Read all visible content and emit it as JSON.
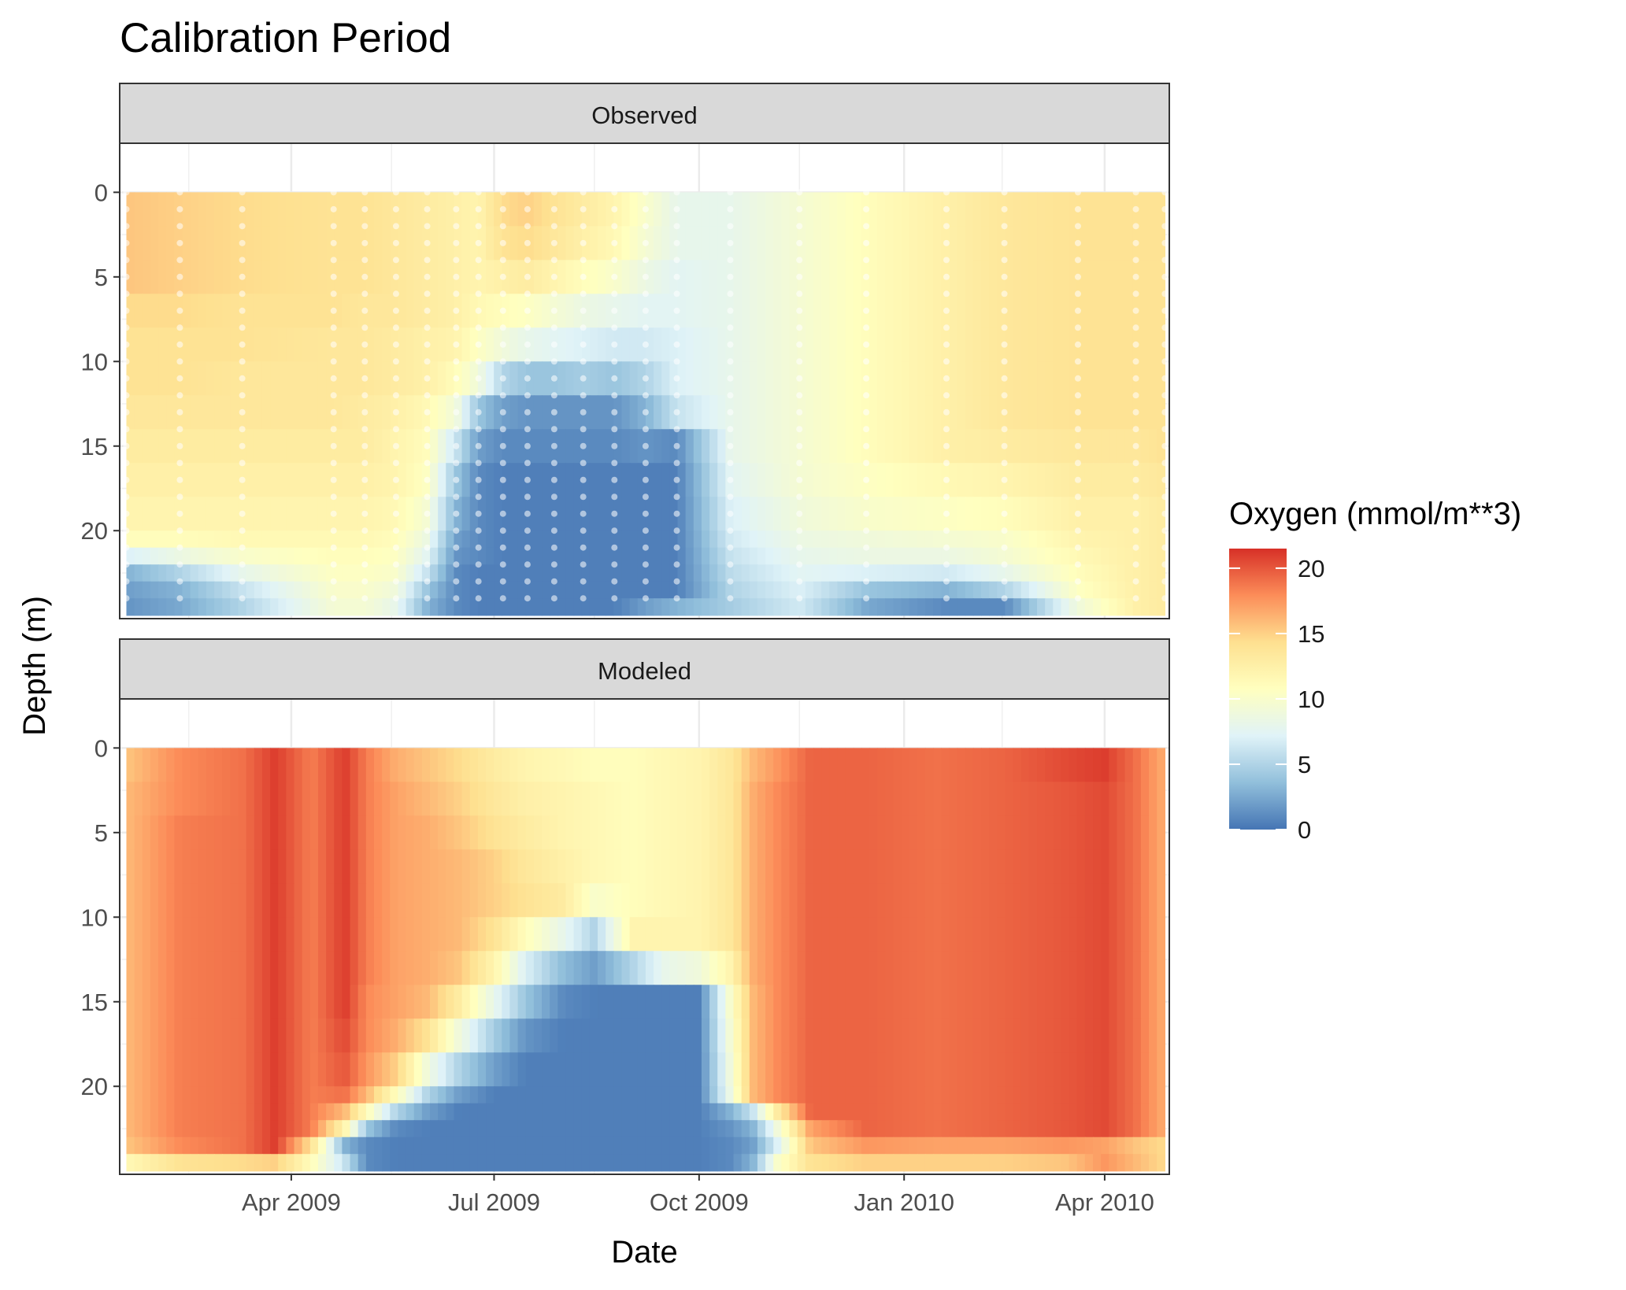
{
  "title": "Calibration Period",
  "chart_data": {
    "type": "heatmap",
    "title": "Calibration Period",
    "xlabel": "Date",
    "ylabel": "Depth (m)",
    "x_ticks": [
      "Apr 2009",
      "Jul 2009",
      "Oct 2009",
      "Jan 2010",
      "Apr 2010"
    ],
    "x_tick_dates": [
      "2009-04-01",
      "2009-07-01",
      "2009-10-01",
      "2010-01-01",
      "2010-04-01"
    ],
    "xlim": [
      "2009-01-14",
      "2010-04-30"
    ],
    "x_grid_dates": [
      "2009-02-14",
      "2009-05-16",
      "2009-08-15",
      "2009-11-15",
      "2010-02-14"
    ],
    "y_ticks": [
      0,
      5,
      10,
      15,
      20
    ],
    "y_tick_labels": [
      "0",
      "5",
      "10",
      "15",
      "20"
    ],
    "ylim": [
      25.2,
      -2.9
    ],
    "y_reversed": true,
    "grid": true,
    "legend": {
      "title": "Oxygen (mmol/m**3)",
      "position": "right",
      "ticks": [
        0,
        5,
        10,
        15,
        20
      ],
      "tick_labels": [
        "0",
        "5",
        "10",
        "15",
        "20"
      ],
      "range": [
        0,
        21.5
      ],
      "colors": [
        "#4575b4",
        "#91bfdb",
        "#e0f3f8",
        "#ffffbf",
        "#fee090",
        "#fc8d59",
        "#d73027"
      ]
    },
    "panels": [
      {
        "name": "Observed",
        "date_columns": [
          "2009-01-17",
          "2009-02-10",
          "2009-03-10",
          "2009-04-20",
          "2009-05-04",
          "2009-05-18",
          "2009-06-01",
          "2009-06-14",
          "2009-06-24",
          "2009-07-05",
          "2009-07-16",
          "2009-07-28",
          "2009-08-10",
          "2009-08-24",
          "2009-09-07",
          "2009-09-21",
          "2009-10-15",
          "2009-11-15",
          "2009-12-15",
          "2010-01-20",
          "2010-02-15",
          "2010-03-20",
          "2010-04-15",
          "2010-04-28"
        ],
        "depth_rows": [
          0,
          2,
          4,
          6,
          8,
          10,
          12,
          14,
          16,
          18,
          20,
          21,
          22,
          23,
          24,
          25
        ],
        "values": [
          [
            15.5,
            15.0,
            14.5,
            14.0,
            14.0,
            13.5,
            13.0,
            12.5,
            12.0,
            14.5,
            15.0,
            14.0,
            13.0,
            12.0,
            10.0,
            8.0,
            8.0,
            9.5,
            11.0,
            12.5,
            13.5,
            14.0,
            14.0,
            14.0
          ],
          [
            15.5,
            15.0,
            14.5,
            14.0,
            14.0,
            13.5,
            13.0,
            12.5,
            12.0,
            14.0,
            14.5,
            13.5,
            12.5,
            11.5,
            9.5,
            8.0,
            8.0,
            9.5,
            11.0,
            12.5,
            13.5,
            14.0,
            14.0,
            14.0
          ],
          [
            15.5,
            15.0,
            14.5,
            14.0,
            14.0,
            13.5,
            13.0,
            12.5,
            12.0,
            12.5,
            13.0,
            12.0,
            11.0,
            10.0,
            8.5,
            7.5,
            8.0,
            9.5,
            11.0,
            12.5,
            13.5,
            14.0,
            14.0,
            14.0
          ],
          [
            14.5,
            14.5,
            14.0,
            14.0,
            13.5,
            13.5,
            13.0,
            12.5,
            11.5,
            11.0,
            10.5,
            9.5,
            8.5,
            8.0,
            7.5,
            7.5,
            8.0,
            9.5,
            11.0,
            12.5,
            13.5,
            14.0,
            14.0,
            14.0
          ],
          [
            14.0,
            14.0,
            14.0,
            13.5,
            13.5,
            13.0,
            12.5,
            12.0,
            10.5,
            9.0,
            8.0,
            7.5,
            7.0,
            6.5,
            6.5,
            7.0,
            8.0,
            9.5,
            11.0,
            12.5,
            13.5,
            14.0,
            14.0,
            14.0
          ],
          [
            14.0,
            14.0,
            13.5,
            13.5,
            13.5,
            13.0,
            12.5,
            11.0,
            9.0,
            5.0,
            4.0,
            4.0,
            4.5,
            4.0,
            5.0,
            7.0,
            8.0,
            9.5,
            11.0,
            12.5,
            13.5,
            14.0,
            14.0,
            14.0
          ],
          [
            13.5,
            13.5,
            13.5,
            13.5,
            13.0,
            12.5,
            11.5,
            9.0,
            4.0,
            2.0,
            1.5,
            1.5,
            1.5,
            1.5,
            3.0,
            6.0,
            8.0,
            9.5,
            11.0,
            12.5,
            13.5,
            14.0,
            14.0,
            14.0
          ],
          [
            13.0,
            13.0,
            13.0,
            13.0,
            13.0,
            12.0,
            11.0,
            6.0,
            2.0,
            1.0,
            1.0,
            1.0,
            1.0,
            1.0,
            1.5,
            1.0,
            8.0,
            9.5,
            11.0,
            12.5,
            13.0,
            13.5,
            13.5,
            14.0
          ],
          [
            12.5,
            12.5,
            12.5,
            12.5,
            12.5,
            12.0,
            10.5,
            4.0,
            1.0,
            0.5,
            0.5,
            0.5,
            0.5,
            0.5,
            0.5,
            0.5,
            7.5,
            9.5,
            10.5,
            11.5,
            12.0,
            13.0,
            13.0,
            13.5
          ],
          [
            12.0,
            12.0,
            12.0,
            12.0,
            12.0,
            11.5,
            9.5,
            3.0,
            1.0,
            0.5,
            0.5,
            0.5,
            0.5,
            0.5,
            0.5,
            0.5,
            7.0,
            9.0,
            10.0,
            10.5,
            11.0,
            12.5,
            12.5,
            13.0
          ],
          [
            11.0,
            11.0,
            11.5,
            11.5,
            11.5,
            11.0,
            8.5,
            2.0,
            1.0,
            0.5,
            0.5,
            0.5,
            0.5,
            0.5,
            0.5,
            0.5,
            6.5,
            8.5,
            9.0,
            9.5,
            10.0,
            12.0,
            12.5,
            13.0
          ],
          [
            7.0,
            8.5,
            10.0,
            11.0,
            11.0,
            10.5,
            7.5,
            1.5,
            1.0,
            0.5,
            0.5,
            0.5,
            0.5,
            0.5,
            0.5,
            0.5,
            6.0,
            8.0,
            8.5,
            8.5,
            9.5,
            11.5,
            12.5,
            13.0
          ],
          [
            3.0,
            5.0,
            8.0,
            10.5,
            10.5,
            10.0,
            6.0,
            1.0,
            0.5,
            0.5,
            0.5,
            0.5,
            0.5,
            0.5,
            0.5,
            0.5,
            5.5,
            7.5,
            7.0,
            6.5,
            8.0,
            11.0,
            12.5,
            13.0
          ],
          [
            2.0,
            3.0,
            6.0,
            10.0,
            10.0,
            9.0,
            4.0,
            1.0,
            0.5,
            0.5,
            0.5,
            0.5,
            0.5,
            0.5,
            0.5,
            0.5,
            5.0,
            7.0,
            4.0,
            3.0,
            5.0,
            10.5,
            12.5,
            13.0
          ],
          [
            1.5,
            2.5,
            5.0,
            9.5,
            9.5,
            8.0,
            3.0,
            1.0,
            0.5,
            0.5,
            0.5,
            0.5,
            0.5,
            0.5,
            2.0,
            3.0,
            4.5,
            6.5,
            2.5,
            1.0,
            1.0,
            9.0,
            12.5,
            13.0
          ],
          [
            1.5,
            2.5,
            5.0,
            9.5,
            9.5,
            8.0,
            3.0,
            1.0,
            0.5,
            0.5,
            0.5,
            0.5,
            0.5,
            0.5,
            2.0,
            3.0,
            4.5,
            6.5,
            2.5,
            1.0,
            1.0,
            9.0,
            12.5,
            13.0
          ]
        ],
        "observation_points": true
      },
      {
        "name": "Modeled",
        "date_columns": [
          "2009-01-17",
          "2009-02-10",
          "2009-03-10",
          "2009-03-25",
          "2009-04-10",
          "2009-04-25",
          "2009-05-05",
          "2009-05-18",
          "2009-06-01",
          "2009-06-15",
          "2009-07-01",
          "2009-07-15",
          "2009-08-01",
          "2009-08-15",
          "2009-09-01",
          "2009-09-15",
          "2009-10-01",
          "2009-10-15",
          "2009-10-25",
          "2009-11-05",
          "2009-11-20",
          "2009-12-15",
          "2010-01-15",
          "2010-02-15",
          "2010-03-15",
          "2010-04-01",
          "2010-04-15",
          "2010-04-28"
        ],
        "depth_rows": [
          0,
          2,
          4,
          6,
          8,
          10,
          12,
          14,
          16,
          18,
          20,
          21,
          22,
          23,
          24,
          25
        ],
        "values": [
          [
            15.5,
            18.0,
            19.0,
            21.0,
            18.5,
            21.0,
            18.5,
            16.5,
            15.5,
            14.5,
            13.0,
            12.0,
            11.5,
            11.0,
            11.0,
            11.5,
            12.0,
            13.5,
            16.0,
            17.5,
            19.5,
            19.5,
            19.0,
            19.5,
            20.5,
            21.0,
            19.0,
            16.5
          ],
          [
            16.0,
            18.0,
            19.0,
            21.0,
            18.5,
            21.0,
            18.5,
            17.0,
            16.0,
            15.0,
            13.5,
            12.5,
            12.0,
            11.5,
            11.0,
            11.5,
            12.0,
            13.5,
            16.5,
            18.0,
            19.5,
            19.5,
            19.0,
            19.5,
            20.0,
            20.5,
            19.0,
            16.5
          ],
          [
            16.0,
            18.5,
            19.0,
            21.0,
            18.5,
            21.0,
            18.5,
            17.0,
            16.5,
            15.5,
            14.0,
            13.0,
            12.0,
            11.5,
            11.0,
            11.5,
            12.0,
            13.5,
            16.5,
            18.0,
            19.5,
            19.5,
            19.0,
            19.5,
            20.0,
            20.5,
            19.0,
            16.5
          ],
          [
            16.0,
            18.5,
            19.0,
            21.0,
            18.5,
            21.0,
            18.5,
            17.0,
            16.5,
            16.0,
            15.0,
            13.5,
            12.5,
            11.5,
            11.0,
            11.5,
            12.0,
            13.5,
            16.5,
            18.0,
            19.5,
            19.5,
            19.0,
            19.5,
            20.0,
            20.5,
            19.0,
            16.5
          ],
          [
            16.0,
            18.5,
            19.0,
            21.0,
            18.5,
            21.0,
            18.5,
            17.0,
            16.5,
            16.0,
            15.0,
            14.0,
            13.0,
            10.0,
            11.0,
            11.5,
            12.0,
            13.5,
            16.5,
            18.0,
            19.5,
            19.5,
            19.0,
            19.5,
            20.0,
            20.5,
            19.0,
            16.5
          ],
          [
            16.0,
            18.5,
            19.0,
            21.0,
            18.5,
            21.0,
            18.5,
            17.0,
            16.5,
            16.0,
            14.0,
            11.0,
            8.0,
            5.0,
            12.0,
            12.0,
            12.0,
            13.5,
            16.5,
            18.0,
            19.5,
            19.5,
            19.0,
            19.5,
            20.0,
            20.5,
            19.0,
            16.5
          ],
          [
            16.0,
            18.5,
            19.0,
            21.0,
            18.5,
            21.0,
            18.5,
            17.0,
            16.5,
            15.5,
            12.0,
            7.0,
            3.5,
            2.0,
            5.0,
            8.0,
            9.0,
            12.0,
            16.5,
            18.0,
            19.5,
            19.5,
            19.0,
            19.5,
            20.0,
            20.5,
            19.0,
            16.5
          ],
          [
            16.0,
            18.5,
            19.0,
            21.0,
            18.5,
            21.0,
            18.0,
            17.0,
            16.0,
            13.0,
            8.0,
            4.0,
            1.0,
            0.5,
            0.5,
            0.5,
            0.5,
            10.0,
            16.0,
            18.0,
            19.5,
            19.5,
            19.0,
            19.5,
            20.0,
            20.5,
            19.0,
            16.5
          ],
          [
            16.0,
            18.5,
            19.0,
            21.0,
            18.5,
            20.5,
            18.0,
            16.5,
            14.0,
            9.0,
            4.5,
            1.5,
            0.5,
            0.5,
            0.5,
            0.5,
            0.5,
            9.5,
            16.0,
            18.0,
            19.5,
            19.5,
            19.0,
            19.5,
            20.0,
            20.5,
            19.0,
            16.5
          ],
          [
            16.0,
            18.5,
            19.0,
            21.0,
            18.5,
            20.0,
            17.5,
            15.0,
            9.0,
            5.0,
            2.0,
            0.5,
            0.5,
            0.5,
            0.5,
            0.5,
            0.5,
            9.0,
            16.0,
            18.0,
            19.5,
            19.5,
            19.0,
            19.5,
            20.0,
            20.5,
            19.0,
            16.5
          ],
          [
            16.0,
            18.5,
            19.0,
            21.0,
            18.5,
            19.0,
            16.0,
            11.0,
            5.0,
            2.0,
            0.5,
            0.5,
            0.5,
            0.5,
            0.5,
            0.5,
            0.5,
            8.5,
            16.0,
            18.0,
            19.5,
            19.5,
            19.0,
            19.5,
            20.0,
            20.5,
            19.0,
            16.5
          ],
          [
            16.0,
            18.5,
            19.0,
            21.0,
            18.5,
            16.0,
            11.0,
            5.0,
            2.0,
            0.5,
            0.5,
            0.5,
            0.5,
            0.5,
            0.5,
            0.5,
            0.5,
            3.0,
            6.0,
            13.0,
            19.5,
            19.5,
            19.0,
            19.5,
            20.0,
            20.5,
            19.0,
            16.5
          ],
          [
            16.0,
            18.5,
            19.0,
            21.0,
            18.5,
            12.0,
            4.0,
            1.0,
            0.5,
            0.5,
            0.5,
            0.5,
            0.5,
            0.5,
            0.5,
            0.5,
            0.5,
            1.5,
            3.0,
            9.0,
            17.0,
            19.5,
            19.0,
            19.5,
            20.0,
            20.5,
            19.0,
            16.5
          ],
          [
            15.5,
            18.0,
            19.0,
            21.0,
            14.0,
            3.0,
            1.0,
            0.5,
            0.5,
            0.5,
            0.5,
            0.5,
            0.5,
            0.5,
            0.5,
            0.5,
            0.5,
            1.0,
            2.0,
            7.0,
            15.5,
            17.5,
            17.0,
            17.0,
            17.5,
            17.0,
            15.5,
            14.5
          ],
          [
            11.5,
            14.0,
            14.5,
            15.0,
            11.0,
            6.0,
            1.0,
            0.5,
            0.5,
            0.5,
            0.5,
            0.5,
            0.5,
            0.5,
            0.5,
            0.5,
            0.5,
            1.0,
            3.0,
            10.0,
            14.0,
            15.0,
            15.0,
            15.0,
            15.5,
            17.5,
            16.0,
            14.5
          ],
          [
            11.5,
            14.0,
            14.5,
            15.0,
            11.0,
            6.0,
            1.0,
            0.5,
            0.5,
            0.5,
            0.5,
            0.5,
            0.5,
            0.5,
            0.5,
            0.5,
            0.5,
            1.0,
            3.0,
            10.0,
            14.0,
            15.0,
            15.0,
            15.0,
            15.5,
            17.5,
            16.0,
            14.5
          ]
        ],
        "observation_points": false
      }
    ]
  }
}
